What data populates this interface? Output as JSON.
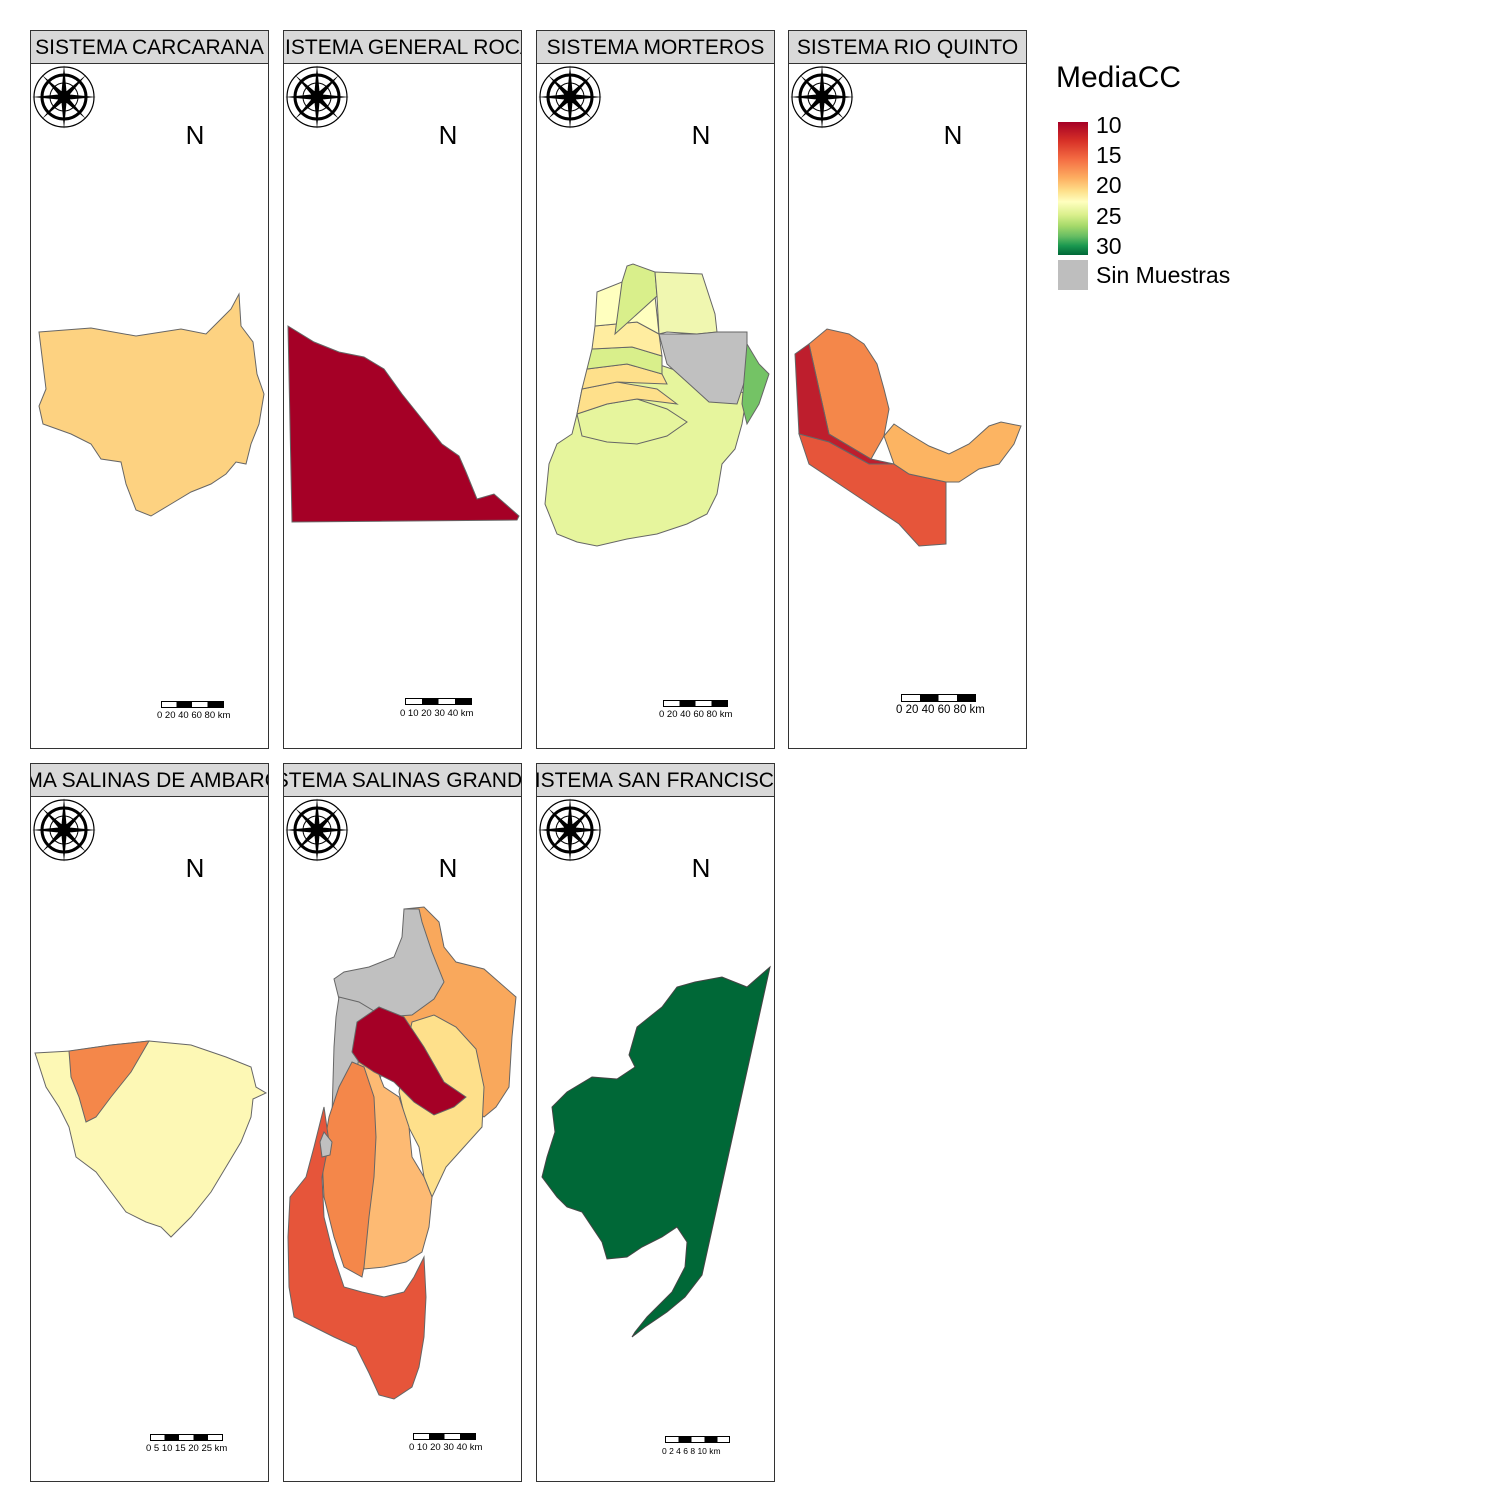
{
  "legend": {
    "title": "MediaCC",
    "ticks": [
      "10",
      "15",
      "20",
      "25",
      "30"
    ],
    "no_data_label": "Sin Muestras",
    "palette": [
      "#a50026",
      "#d73027",
      "#f46d43",
      "#fdae61",
      "#fee08b",
      "#ffffbf",
      "#d9ef8b",
      "#a6d96a",
      "#66bd63",
      "#1a9850",
      "#006837"
    ],
    "no_data_color": "#bebebe"
  },
  "panels": [
    {
      "title": "SISTEMA CARCARANA",
      "north": "N",
      "scale_labels": "0  20 40 60  80 km"
    },
    {
      "title": "SISTEMA GENERAL ROCA",
      "north": "N",
      "scale_labels": "0  10 20 30 40 km"
    },
    {
      "title": "SISTEMA MORTEROS",
      "north": "N",
      "scale_labels": "0  20 40 60  80 km"
    },
    {
      "title": "SISTEMA RIO QUINTO",
      "north": "N",
      "scale_labels": "0  20 40 60  80 km"
    },
    {
      "title": "SISTEMA SALINAS DE AMBARGASTA",
      "north": "N",
      "scale_labels": "0   5  10 15 20 25 km"
    },
    {
      "title": "SISTEMA SALINAS GRANDES",
      "north": "N",
      "scale_labels": "0  10 20 30 40 km"
    },
    {
      "title": "SISTEMA SAN FRANCISCO",
      "north": "N",
      "scale_labels": "0   2   4   6   8  10 km"
    }
  ]
}
